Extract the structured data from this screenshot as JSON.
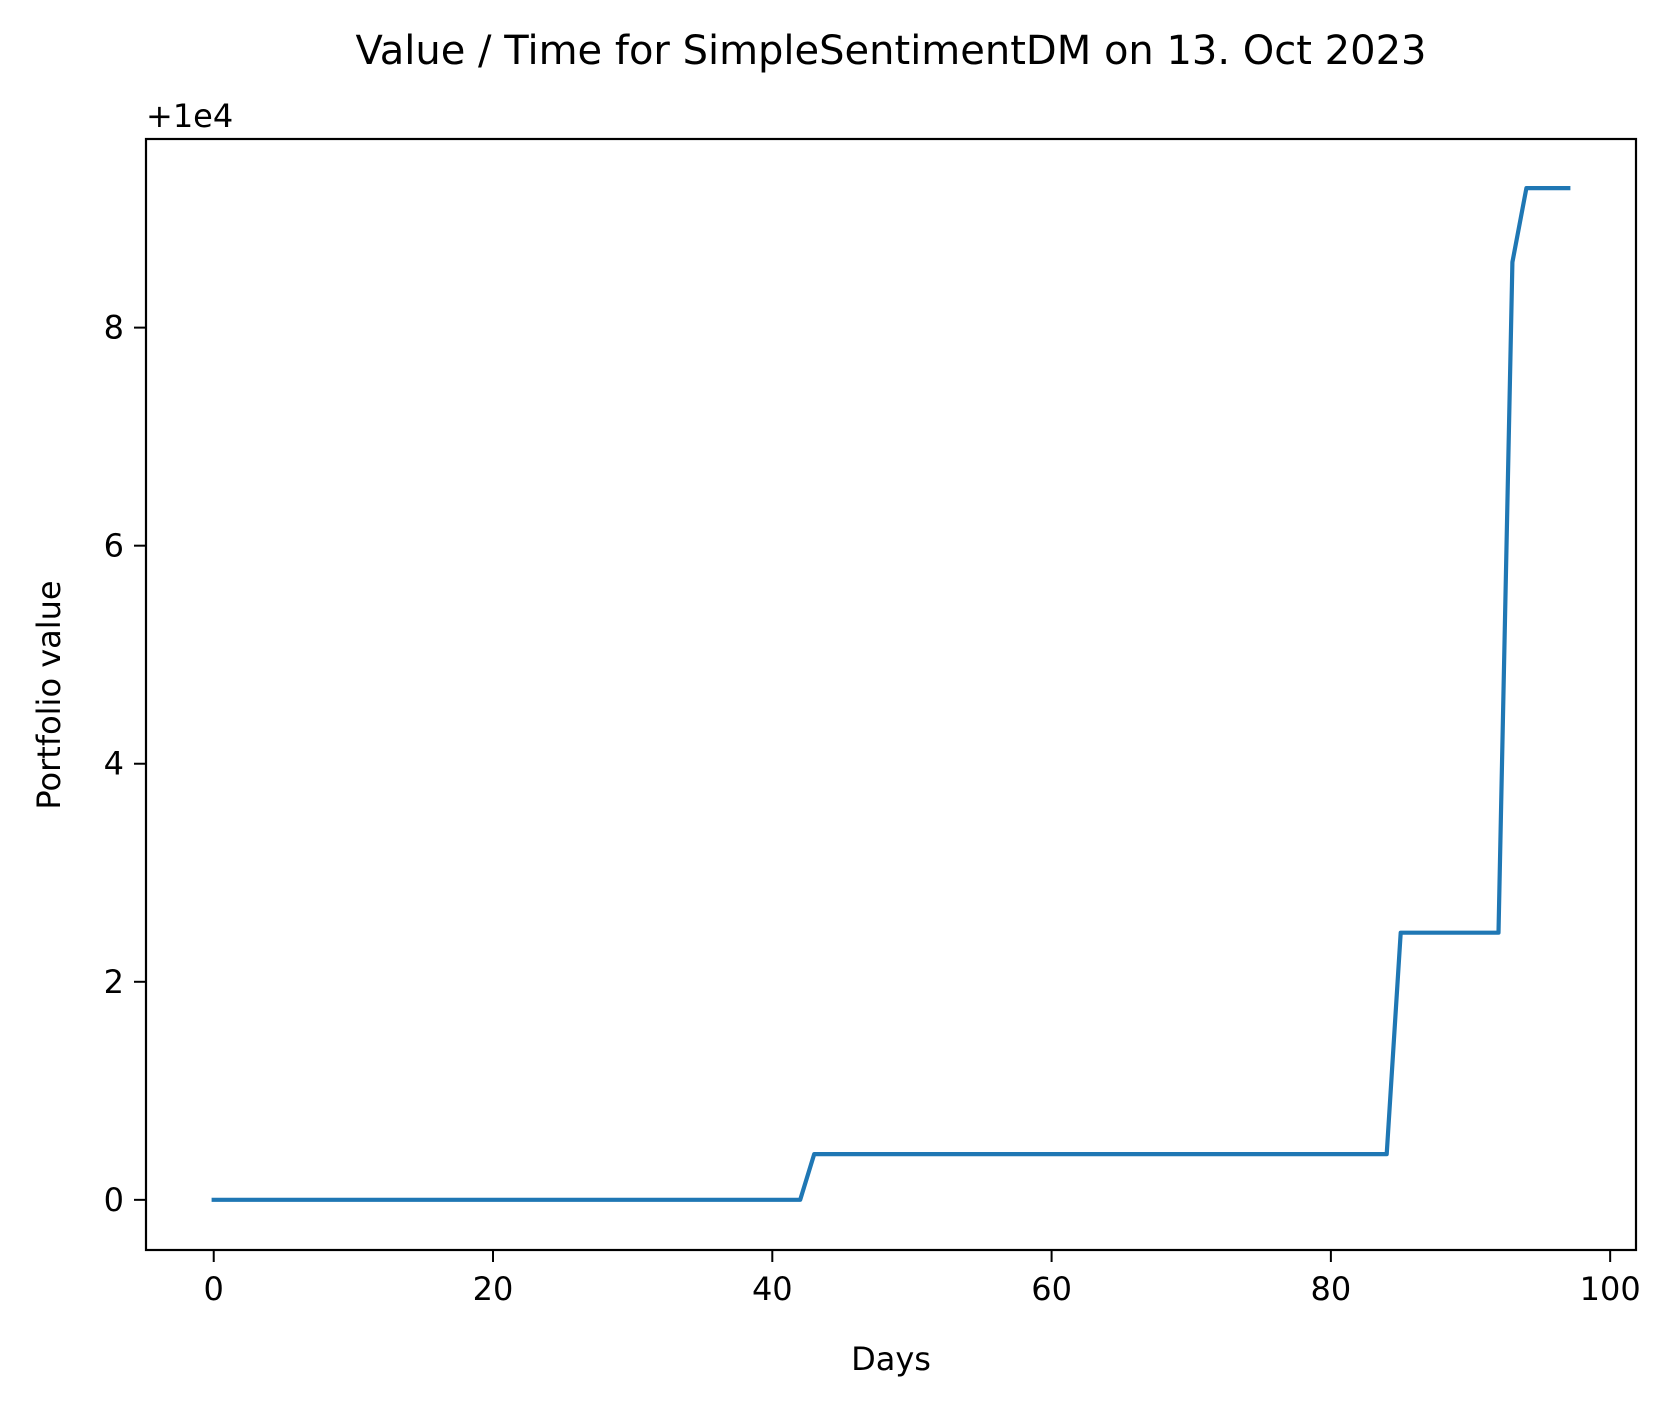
{
  "chart_data": {
    "type": "line",
    "title": "Value / Time for SimpleSentimentDM on 13. Oct 2023",
    "xlabel": "Days",
    "ylabel": "Portfolio value",
    "y_offset_label": "+1e4",
    "y_offset": 10000,
    "xlim": [
      -4.85,
      101.85
    ],
    "ylim": [
      -0.46,
      9.73
    ],
    "x_ticks": [
      0,
      20,
      40,
      60,
      80,
      100
    ],
    "x_tick_labels": [
      "0",
      "20",
      "40",
      "60",
      "80",
      "100"
    ],
    "y_ticks": [
      0,
      2,
      4,
      6,
      8
    ],
    "y_tick_labels": [
      "0",
      "2",
      "4",
      "6",
      "8"
    ],
    "grid": false,
    "legend": "none",
    "series": [
      {
        "color": "#1f77b4",
        "x": [
          0,
          42,
          43,
          84,
          85,
          92,
          93,
          94,
          97
        ],
        "y": [
          0,
          0,
          0.42,
          0.42,
          2.45,
          2.45,
          8.6,
          9.28,
          9.28
        ]
      }
    ]
  }
}
